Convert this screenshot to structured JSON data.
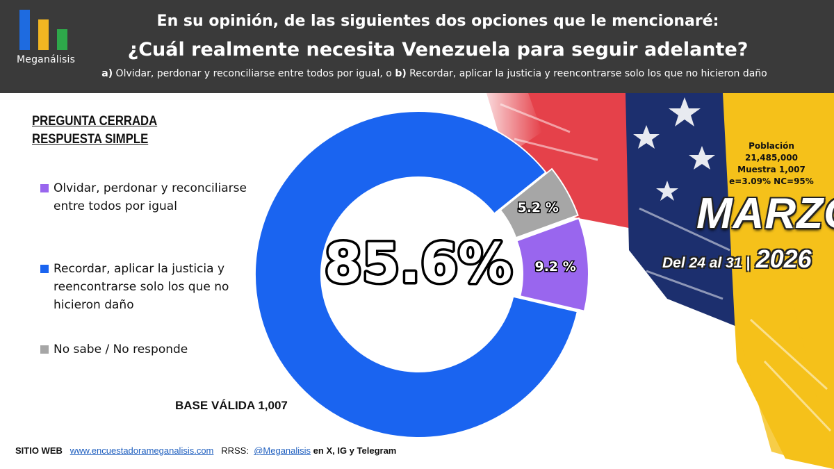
{
  "header": {
    "logo_text": "Meganálisis",
    "line1": "En su opinión, de las siguientes dos opciones que le mencionaré:",
    "line2": "¿Cuál realmente necesita Venezuela para seguir adelante?",
    "opt_a_letter": "a)",
    "opt_a_text": " Olvidar, perdonar y reconciliarse entre todos por igual, o ",
    "opt_b_letter": "b)",
    "opt_b_text": " Recordar, aplicar la justicia y reencontrarse solo los que no hicieron daño"
  },
  "question_type": {
    "line1": "PREGUNTA  CERRADA",
    "line2": "RESPUESTA SIMPLE"
  },
  "base_label": "BASE VÁLIDA 1,007",
  "info": {
    "poblacion_label": "Población",
    "poblacion_value": "21,485,000",
    "muestra": "Muestra 1,007",
    "error": "e=3.09%  NC=95%"
  },
  "period": {
    "month": "MARZO",
    "dates": "Del 24 al 31 |",
    "year": "2026"
  },
  "footer": {
    "sitio_label": "SITIO WEB",
    "sitio_url": "www.encuestadorameganalisis.com",
    "rrss_label": "RRSS:",
    "handle": "@Meganalisis",
    "networks": "en X, IG y Telegram"
  },
  "colors": {
    "header_bg": "#3a3a3a",
    "blue": "#1a64f0",
    "purple": "#9966ee",
    "gray": "#a6a6a6",
    "red": "#e0202a",
    "navy": "#1c2f6e",
    "yellow": "#f5c11a"
  },
  "chart_data": {
    "type": "pie",
    "donut": true,
    "title": "",
    "center_label": "85.6%",
    "series": [
      {
        "name": "Olvidar, perdonar y reconciliarse entre todos por igual",
        "value": 9.2,
        "label": "9.2 %",
        "color": "#9966ee",
        "exploded": true
      },
      {
        "name": "Recordar, aplicar la justicia y reencontrarse solo los que no hicieron daño",
        "value": 85.6,
        "label": "",
        "color": "#1a64f0",
        "exploded": false
      },
      {
        "name": "No sabe / No responde",
        "value": 5.2,
        "label": "5.2 %",
        "color": "#a6a6a6",
        "exploded": true
      }
    ],
    "legend_position": "left"
  }
}
